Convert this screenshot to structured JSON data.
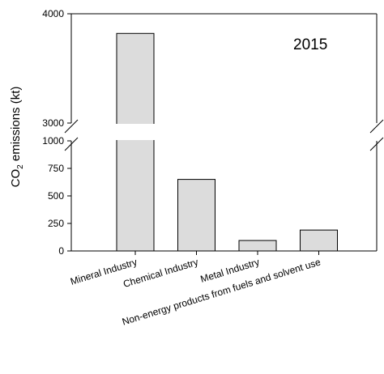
{
  "chart_data": {
    "type": "bar",
    "title": "",
    "annotation": "2015",
    "ylabel_parts": {
      "pre": "CO",
      "sub": "2",
      "post": " emissions (kt)"
    },
    "xlabel": "",
    "categories": [
      "Mineral Industry",
      "Chemical Industry",
      "Metal Industry",
      "Non-energy products from fuels and solvent use"
    ],
    "values": [
      3820,
      650,
      95,
      190
    ],
    "axis_break": {
      "lower_segment": [
        0,
        1000
      ],
      "upper_segment": [
        3000,
        4000
      ]
    },
    "ylim": [
      0,
      4000
    ],
    "lower_ticks": [
      0,
      250,
      500,
      750,
      1000
    ],
    "upper_ticks": [
      3000,
      4000
    ],
    "grid": false,
    "bar_color": "#dcdcdc",
    "edge_color": "#000000"
  }
}
